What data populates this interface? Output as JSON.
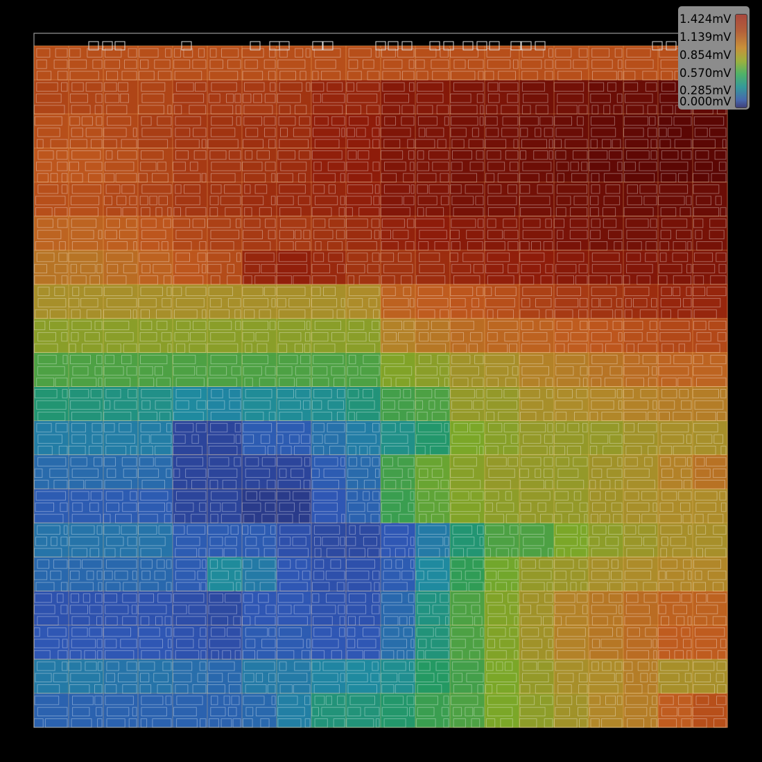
{
  "legend": {
    "unit": "mV",
    "labels": [
      "1.424mV",
      "1.139mV",
      "0.854mV",
      "0.570mV",
      "0.285mV",
      "0.000mV"
    ],
    "min": 0.0,
    "max": 1.424
  },
  "chart_data": {
    "type": "heatmap",
    "title": "",
    "value_unit": "mV",
    "range": [
      0.0,
      1.424
    ],
    "colorscale": [
      "#28307a",
      "#2f56b4",
      "#1f8aa0",
      "#249a5e",
      "#78a828",
      "#b08a2a",
      "#c05a1e",
      "#8f1d0a",
      "#5a0604"
    ],
    "grid_cols": 20,
    "grid_rows": 20,
    "values": [
      [
        1.1,
        1.1,
        1.1,
        1.1,
        1.1,
        1.1,
        1.1,
        1.1,
        1.1,
        1.1,
        1.1,
        1.1,
        1.1,
        1.1,
        1.1,
        1.1,
        1.1,
        1.1,
        1.1,
        1.1
      ],
      [
        1.13,
        1.13,
        1.13,
        1.13,
        1.16,
        1.16,
        1.16,
        1.18,
        1.22,
        1.22,
        1.28,
        1.28,
        1.31,
        1.31,
        1.34,
        1.34,
        1.37,
        1.37,
        1.4,
        1.4
      ],
      [
        1.1,
        1.1,
        1.12,
        1.15,
        1.17,
        1.18,
        1.19,
        1.2,
        1.24,
        1.25,
        1.3,
        1.31,
        1.33,
        1.34,
        1.36,
        1.37,
        1.39,
        1.4,
        1.42,
        1.42
      ],
      [
        1.08,
        1.08,
        1.1,
        1.13,
        1.16,
        1.17,
        1.18,
        1.2,
        1.24,
        1.25,
        1.3,
        1.31,
        1.34,
        1.34,
        1.36,
        1.38,
        1.4,
        1.41,
        1.42,
        1.42
      ],
      [
        1.1,
        1.1,
        1.12,
        1.14,
        1.17,
        1.18,
        1.2,
        1.21,
        1.22,
        1.24,
        1.29,
        1.3,
        1.33,
        1.33,
        1.34,
        1.35,
        1.36,
        1.37,
        1.37,
        1.37
      ],
      [
        1.03,
        1.03,
        1.05,
        1.08,
        1.12,
        1.14,
        1.16,
        1.16,
        1.18,
        1.2,
        1.23,
        1.25,
        1.27,
        1.28,
        1.3,
        1.32,
        1.34,
        1.34,
        1.33,
        1.33
      ],
      [
        0.97,
        0.97,
        1.0,
        1.04,
        1.08,
        1.11,
        1.22,
        1.24,
        1.21,
        1.18,
        1.18,
        1.2,
        1.22,
        1.24,
        1.25,
        1.27,
        1.28,
        1.29,
        1.3,
        1.3
      ],
      [
        0.86,
        0.86,
        0.86,
        0.86,
        0.86,
        0.86,
        0.86,
        0.86,
        0.86,
        0.88,
        1.04,
        1.06,
        1.08,
        1.1,
        1.14,
        1.16,
        1.18,
        1.2,
        1.22,
        1.22
      ],
      [
        0.77,
        0.77,
        0.77,
        0.77,
        0.77,
        0.77,
        0.77,
        0.77,
        0.77,
        0.77,
        0.92,
        0.96,
        1.0,
        1.02,
        1.04,
        1.06,
        1.08,
        1.1,
        1.12,
        1.12
      ],
      [
        0.62,
        0.62,
        0.62,
        0.62,
        0.62,
        0.62,
        0.62,
        0.62,
        0.62,
        0.62,
        0.74,
        0.77,
        0.84,
        0.86,
        0.92,
        0.94,
        0.97,
        1.0,
        1.03,
        1.03
      ],
      [
        0.48,
        0.46,
        0.44,
        0.42,
        0.36,
        0.34,
        0.38,
        0.38,
        0.4,
        0.46,
        0.6,
        0.62,
        0.8,
        0.8,
        0.86,
        0.88,
        0.9,
        0.92,
        0.94,
        0.94
      ],
      [
        0.31,
        0.31,
        0.31,
        0.31,
        0.1,
        0.1,
        0.2,
        0.2,
        0.27,
        0.31,
        0.42,
        0.5,
        0.72,
        0.76,
        0.8,
        0.8,
        0.8,
        0.84,
        0.86,
        0.86
      ],
      [
        0.25,
        0.25,
        0.25,
        0.25,
        0.1,
        0.1,
        0.1,
        0.1,
        0.2,
        0.25,
        0.6,
        0.68,
        0.76,
        0.8,
        0.8,
        0.8,
        0.84,
        0.86,
        0.92,
        0.98
      ],
      [
        0.2,
        0.2,
        0.2,
        0.2,
        0.1,
        0.1,
        0.05,
        0.05,
        0.18,
        0.22,
        0.58,
        0.66,
        0.74,
        0.78,
        0.8,
        0.8,
        0.84,
        0.86,
        0.88,
        0.88
      ],
      [
        0.28,
        0.28,
        0.28,
        0.28,
        0.2,
        0.2,
        0.2,
        0.15,
        0.12,
        0.12,
        0.18,
        0.3,
        0.48,
        0.62,
        0.62,
        0.72,
        0.78,
        0.82,
        0.86,
        0.86
      ],
      [
        0.24,
        0.24,
        0.24,
        0.24,
        0.2,
        0.37,
        0.3,
        0.18,
        0.15,
        0.15,
        0.2,
        0.36,
        0.56,
        0.7,
        0.8,
        0.82,
        0.86,
        0.88,
        0.9,
        0.9
      ],
      [
        0.16,
        0.16,
        0.16,
        0.16,
        0.14,
        0.12,
        0.18,
        0.18,
        0.16,
        0.16,
        0.24,
        0.44,
        0.62,
        0.74,
        0.84,
        0.92,
        0.96,
        1.0,
        1.04,
        1.04
      ],
      [
        0.18,
        0.18,
        0.18,
        0.18,
        0.16,
        0.14,
        0.2,
        0.2,
        0.18,
        0.18,
        0.26,
        0.46,
        0.62,
        0.74,
        0.84,
        0.92,
        0.96,
        1.0,
        1.06,
        1.06
      ],
      [
        0.3,
        0.3,
        0.28,
        0.28,
        0.26,
        0.24,
        0.3,
        0.3,
        0.34,
        0.36,
        0.4,
        0.52,
        0.6,
        0.72,
        0.8,
        0.86,
        0.88,
        0.94,
        0.86,
        0.86
      ],
      [
        0.22,
        0.22,
        0.22,
        0.22,
        0.22,
        0.22,
        0.24,
        0.32,
        0.46,
        0.46,
        0.5,
        0.58,
        0.62,
        0.72,
        0.78,
        0.84,
        0.9,
        0.94,
        1.06,
        1.1
      ]
    ]
  }
}
